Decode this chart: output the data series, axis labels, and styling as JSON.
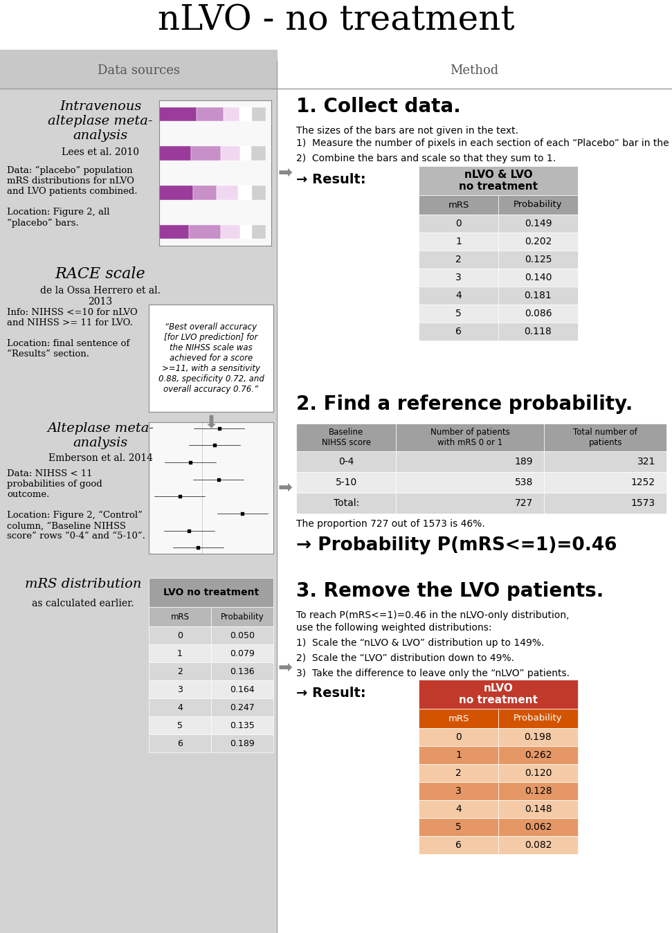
{
  "title": "nLVO - no treatment",
  "col_headers": [
    "Data sources",
    "Method"
  ],
  "bg_color": "#ffffff",
  "left_bg": "#d3d3d3",
  "header_bg": "#c8c8c8",
  "section1_header": "1. Collect data.",
  "section1_text_line1": "The sizes of the bars are not given in the text.",
  "section1_items": [
    "Measure the number of pixels in each section of each “Placebo” bar in the image.",
    "Combine the bars and scale so that they sum to 1."
  ],
  "section1_result_label": "→ Result:",
  "table1_title": "nLVO & LVO\nno treatment",
  "table1_header": [
    "mRS",
    "Probability"
  ],
  "table1_data": [
    [
      "0",
      "0.149"
    ],
    [
      "1",
      "0.202"
    ],
    [
      "2",
      "0.125"
    ],
    [
      "3",
      "0.140"
    ],
    [
      "4",
      "0.181"
    ],
    [
      "5",
      "0.086"
    ],
    [
      "6",
      "0.118"
    ]
  ],
  "table1_header_bg": "#a0a0a0",
  "table1_title_bg": "#b8b8b8",
  "table1_alt_bg": "#d8d8d8",
  "table1_white_bg": "#ebebeb",
  "section2_header": "2. Find a reference probability.",
  "table2_col_headers": [
    "Baseline\nNIHSS score",
    "Number of patients\nwith mRS 0 or 1",
    "Total number of\npatients"
  ],
  "table2_data": [
    [
      "0-4",
      "189",
      "321"
    ],
    [
      "5-10",
      "538",
      "1252"
    ],
    [
      "Total:",
      "727",
      "1573"
    ]
  ],
  "table2_header_bg": "#a0a0a0",
  "table2_alt_bg": "#d8d8d8",
  "table2_white_bg": "#ebebeb",
  "section2_text": "The proportion 727 out of 1573 is 46%.",
  "section2_result": "→ Probability P(mRS<=1)=0.46",
  "section3_header": "3. Remove the LVO patients.",
  "section3_text_line1": "To reach P(mRS<=1)=0.46 in the nLVO-only distribution,",
  "section3_text_line2": "use the following weighted distributions:",
  "section3_items": [
    "Scale the “nLVO & LVO” distribution up to 149%.",
    "Scale the “LVO” distribution down to 49%.",
    "Take the difference to leave only the “nLVO” patients."
  ],
  "section3_result_label": "→ Result:",
  "table3_title": "nLVO\nno treatment",
  "table3_header": [
    "mRS",
    "Probability"
  ],
  "table3_data": [
    [
      "0",
      "0.198"
    ],
    [
      "1",
      "0.262"
    ],
    [
      "2",
      "0.120"
    ],
    [
      "3",
      "0.128"
    ],
    [
      "4",
      "0.148"
    ],
    [
      "5",
      "0.062"
    ],
    [
      "6",
      "0.082"
    ]
  ],
  "table3_title_bg": "#c0392b",
  "table3_header_bg": "#d35400",
  "table3_row_colors": [
    "#f5cba7",
    "#e59866",
    "#f5cba7",
    "#e59866",
    "#f5cba7",
    "#e59866",
    "#f5cba7"
  ],
  "src0_title": "Intravenous\nalteplase meta-\nanalysis",
  "src0_subtitle": "Lees et al. 2010",
  "src0_body": "Data: “placebo” population\nmRS distributions for nLVO\nand LVO patients combined.\n\nLocation: Figure 2, all\n“placebo” bars.",
  "src1_title": "RACE scale",
  "src1_subtitle": "de la Ossa Herrero et al.\n2013",
  "src1_body": "Info: NIHSS <=10 for nLVO\nand NIHSS >= 11 for LVO.\n\nLocation: final sentence of\n“Results” section.",
  "src1_quote": "“Best overall accuracy\n[for LVO prediction] for\nthe NIHSS scale was\nachieved for a score\n>=11, with a sensitivity\n0.88, specificity 0.72, and\noverall accuracy 0.76.”",
  "src2_title": "Alteplase meta-\nanalysis",
  "src2_subtitle": "Emberson et al. 2014",
  "src2_body": "Data: NIHSS < 11\nprobabilities of good\noutcome.\n\nLocation: Figure 2, “Control”\ncolumn, “Baseline NIHSS\nscore” rows “0-4” and “5-10”.",
  "src3_title": "mRS distribution",
  "src3_subtitle": "as calculated earlier.",
  "lvo_table_title": "LVO no treatment",
  "lvo_table_header": [
    "mRS",
    "Probability"
  ],
  "lvo_table_data": [
    [
      "0",
      "0.050"
    ],
    [
      "1",
      "0.079"
    ],
    [
      "2",
      "0.136"
    ],
    [
      "3",
      "0.164"
    ],
    [
      "4",
      "0.247"
    ],
    [
      "5",
      "0.135"
    ],
    [
      "6",
      "0.189"
    ]
  ],
  "lvo_table_title_bg": "#a0a0a0",
  "lvo_table_header_bg": "#b8b8b8",
  "lvo_table_alt_bg": "#d8d8d8",
  "lvo_table_white_bg": "#ebebeb"
}
